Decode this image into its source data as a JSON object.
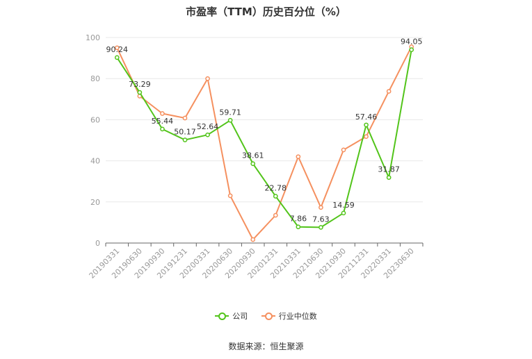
{
  "chart_data": {
    "type": "line",
    "title": "市盈率（TTM）历史百分位（%）",
    "categories": [
      "20190331",
      "20190630",
      "20190930",
      "20191231",
      "20200331",
      "20200630",
      "20200930",
      "20201231",
      "20210331",
      "20210630",
      "20210930",
      "20211231",
      "20220331",
      "20230630"
    ],
    "ylim": [
      0,
      100
    ],
    "yticks": [
      0,
      20,
      40,
      60,
      80,
      100
    ],
    "grid": true,
    "legend_position": "bottom",
    "series": [
      {
        "name": "公司",
        "color": "#52c41a",
        "values": [
          90.24,
          73.29,
          55.44,
          50.17,
          52.64,
          59.71,
          38.61,
          22.78,
          7.86,
          7.63,
          14.59,
          57.46,
          31.87,
          94.05
        ],
        "labels": [
          "90.24",
          "73.29",
          "55.44",
          "50.17",
          "52.64",
          "59.71",
          "38.61",
          "22.78",
          "7.86",
          "7.63",
          "14.59",
          "57.46",
          "31.87",
          "94.05"
        ]
      },
      {
        "name": "行业中位数",
        "color": "#f5905f",
        "values": [
          95,
          71.5,
          63,
          60.8,
          80,
          23,
          1.7,
          13.5,
          42,
          17.3,
          45.3,
          51.8,
          73.8,
          95.5
        ]
      }
    ],
    "source": "数据来源：恒生聚源"
  }
}
